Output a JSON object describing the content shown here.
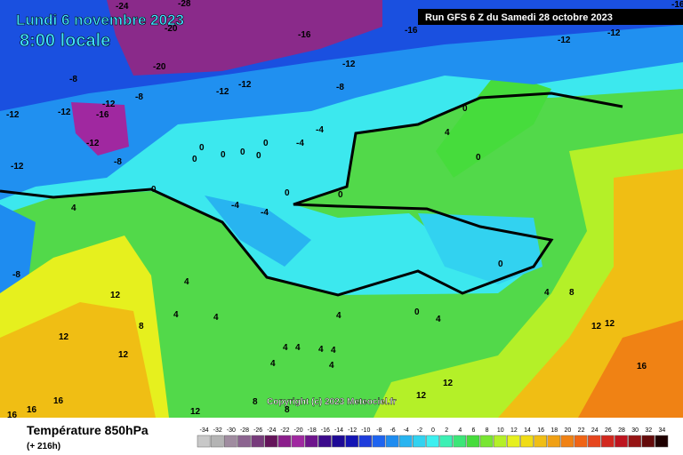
{
  "header": {
    "date": "Lundi 6 novembre 2023",
    "time": "8:00 locale",
    "run": "Run GFS 6 Z du Samedi 28 octobre 2023"
  },
  "copyright": "Copyright (c) 2023 Meteociel.fr",
  "footer": {
    "title": "Température 850hPa",
    "lead": "(+ 216h)"
  },
  "legend": {
    "ticks": [
      -34,
      -32,
      -30,
      -28,
      -26,
      -24,
      -22,
      -20,
      -18,
      -16,
      -14,
      -12,
      -10,
      -8,
      -6,
      -4,
      -2,
      0,
      2,
      4,
      6,
      8,
      10,
      12,
      14,
      16,
      18,
      20,
      22,
      24,
      26,
      28,
      30,
      32,
      34
    ],
    "colors": [
      "#c8c8c8",
      "#b4b4b4",
      "#a08ca0",
      "#8c6490",
      "#783c7c",
      "#64145a",
      "#8c1e8c",
      "#a028a0",
      "#6e148c",
      "#3c0a8c",
      "#1e0a96",
      "#1414b4",
      "#1e3cdc",
      "#1e64f0",
      "#1e8cf0",
      "#28b4f0",
      "#32d2f0",
      "#3cf0f0",
      "#3cf0b4",
      "#3ce678",
      "#46dc3c",
      "#78e632",
      "#b4f028",
      "#e6f01e",
      "#f0dc14",
      "#f0be14",
      "#f0a014",
      "#f08214",
      "#f06414",
      "#e6461e",
      "#d2281e",
      "#be141e",
      "#961414",
      "#640a0a",
      "#1e0000"
    ]
  },
  "contour_labels": [
    -24,
    -28,
    -20,
    -16,
    -16,
    -16,
    -12,
    -12,
    -12,
    -12,
    -12,
    -20,
    -8,
    -8,
    -8,
    -12,
    -12,
    -16,
    -12,
    -12,
    -8,
    -12,
    -4,
    -4,
    0,
    4,
    0,
    0,
    0,
    0,
    0,
    0,
    0,
    0,
    0,
    0,
    -4,
    -4,
    4,
    -8,
    12,
    8,
    12,
    12,
    4,
    4,
    4,
    4,
    0,
    4,
    0,
    4,
    8,
    12,
    12,
    16,
    16,
    16,
    16,
    12,
    8,
    8,
    12,
    12,
    4,
    4,
    4,
    4,
    4,
    4
  ]
}
